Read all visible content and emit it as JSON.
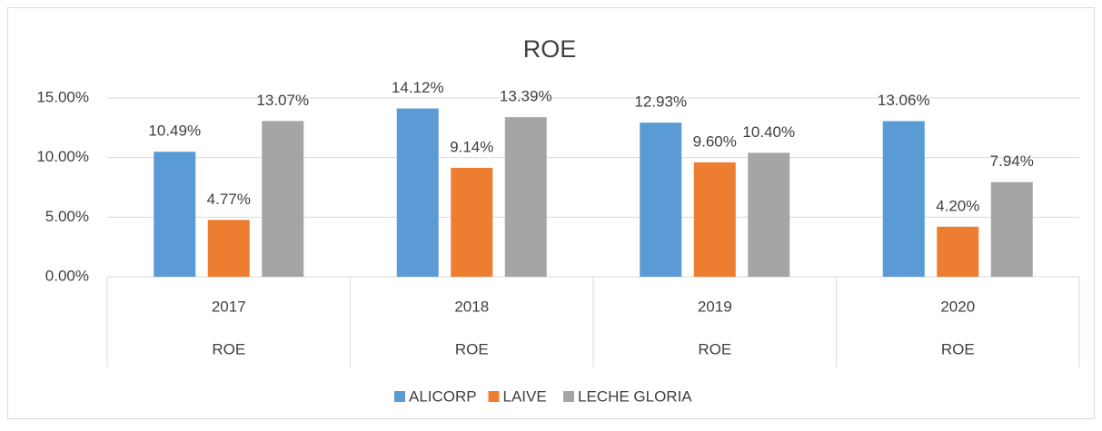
{
  "chart_data": {
    "type": "bar",
    "title": "ROE",
    "categories": [
      "2017",
      "2018",
      "2019",
      "2020"
    ],
    "subcategories": [
      "ROE",
      "ROE",
      "ROE",
      "ROE"
    ],
    "series": [
      {
        "name": "ALICORP",
        "color": "#5b9bd5",
        "values": [
          10.49,
          14.12,
          12.93,
          13.06
        ],
        "value_labels": [
          "10.49%",
          "14.12%",
          "12.93%",
          "13.06%"
        ]
      },
      {
        "name": "LAIVE",
        "color": "#ed7d31",
        "values": [
          4.77,
          9.14,
          9.6,
          4.2
        ],
        "value_labels": [
          "4.77%",
          "9.14%",
          "9.60%",
          "4.20%"
        ]
      },
      {
        "name": "LECHE GLORIA",
        "color": "#a5a5a5",
        "values": [
          13.07,
          13.39,
          10.4,
          7.94
        ],
        "value_labels": [
          "13.07%",
          "13.39%",
          "10.40%",
          "7.94%"
        ]
      }
    ],
    "ylim": [
      0,
      15
    ],
    "yticks": [
      {
        "value": 0,
        "label": "0.00%"
      },
      {
        "value": 5,
        "label": "5.00%"
      },
      {
        "value": 10,
        "label": "10.00%"
      },
      {
        "value": 15,
        "label": "15.00%"
      }
    ],
    "grid": true,
    "legend": "bottom"
  }
}
